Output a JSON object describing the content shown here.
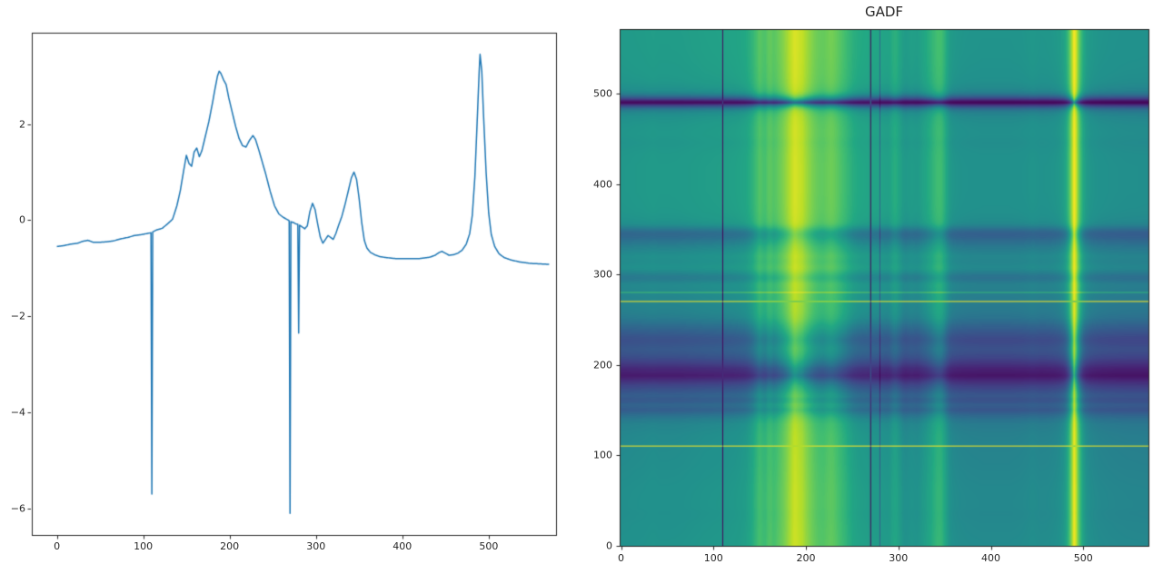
{
  "chart_data": [
    {
      "type": "line",
      "name": "signal-time-series",
      "title": "",
      "line_color": "#1f77b4",
      "line_width": 1.5,
      "grid": false,
      "xlim": [
        -29,
        578
      ],
      "ylim": [
        -6.55,
        3.9
      ],
      "x_tick_values": [
        0,
        100,
        200,
        300,
        400,
        500
      ],
      "x_tick_labels": [
        "0",
        "100",
        "200",
        "300",
        "400",
        "500"
      ],
      "y_tick_values": [
        2,
        0,
        -2,
        -4,
        -6
      ],
      "y_tick_labels": [
        "2",
        "0",
        "−2",
        "−4",
        "−6"
      ],
      "points": [
        [
          0,
          -0.55
        ],
        [
          8,
          -0.53
        ],
        [
          16,
          -0.5
        ],
        [
          24,
          -0.48
        ],
        [
          30,
          -0.44
        ],
        [
          36,
          -0.42
        ],
        [
          42,
          -0.46
        ],
        [
          50,
          -0.46
        ],
        [
          58,
          -0.45
        ],
        [
          66,
          -0.43
        ],
        [
          74,
          -0.39
        ],
        [
          82,
          -0.36
        ],
        [
          90,
          -0.32
        ],
        [
          98,
          -0.3
        ],
        [
          104,
          -0.28
        ],
        [
          109.5,
          -0.26
        ],
        [
          110,
          -5.7
        ],
        [
          110.5,
          -0.25
        ],
        [
          116,
          -0.2
        ],
        [
          122,
          -0.17
        ],
        [
          128,
          -0.08
        ],
        [
          134,
          0.02
        ],
        [
          139,
          0.3
        ],
        [
          143,
          0.62
        ],
        [
          147,
          1.05
        ],
        [
          150,
          1.35
        ],
        [
          153,
          1.18
        ],
        [
          156,
          1.12
        ],
        [
          159,
          1.42
        ],
        [
          162,
          1.5
        ],
        [
          165,
          1.32
        ],
        [
          168,
          1.45
        ],
        [
          172,
          1.75
        ],
        [
          176,
          2.05
        ],
        [
          180,
          2.42
        ],
        [
          183,
          2.72
        ],
        [
          186,
          3.0
        ],
        [
          188,
          3.1
        ],
        [
          190,
          3.05
        ],
        [
          193,
          2.92
        ],
        [
          196,
          2.82
        ],
        [
          199,
          2.55
        ],
        [
          203,
          2.25
        ],
        [
          207,
          1.95
        ],
        [
          211,
          1.7
        ],
        [
          215,
          1.55
        ],
        [
          219,
          1.52
        ],
        [
          223,
          1.66
        ],
        [
          227,
          1.76
        ],
        [
          230,
          1.68
        ],
        [
          234,
          1.45
        ],
        [
          238,
          1.2
        ],
        [
          242,
          0.95
        ],
        [
          247,
          0.6
        ],
        [
          252,
          0.3
        ],
        [
          257,
          0.13
        ],
        [
          262,
          0.06
        ],
        [
          267,
          0.01
        ],
        [
          269.5,
          -0.02
        ],
        [
          270,
          -6.1
        ],
        [
          270.5,
          -0.03
        ],
        [
          274,
          -0.05
        ],
        [
          277,
          -0.08
        ],
        [
          279.5,
          -0.09
        ],
        [
          280,
          -2.35
        ],
        [
          280.5,
          -0.1
        ],
        [
          284,
          -0.14
        ],
        [
          287,
          -0.18
        ],
        [
          290,
          -0.12
        ],
        [
          293,
          0.18
        ],
        [
          296,
          0.35
        ],
        [
          299,
          0.22
        ],
        [
          302,
          -0.08
        ],
        [
          305,
          -0.35
        ],
        [
          308,
          -0.48
        ],
        [
          311,
          -0.4
        ],
        [
          314,
          -0.32
        ],
        [
          317,
          -0.36
        ],
        [
          320,
          -0.4
        ],
        [
          323,
          -0.28
        ],
        [
          326,
          -0.12
        ],
        [
          330,
          0.08
        ],
        [
          334,
          0.35
        ],
        [
          338,
          0.65
        ],
        [
          341,
          0.88
        ],
        [
          344,
          1.0
        ],
        [
          347,
          0.85
        ],
        [
          350,
          0.45
        ],
        [
          353,
          -0.05
        ],
        [
          356,
          -0.42
        ],
        [
          359,
          -0.58
        ],
        [
          363,
          -0.67
        ],
        [
          368,
          -0.72
        ],
        [
          374,
          -0.76
        ],
        [
          382,
          -0.78
        ],
        [
          392,
          -0.8
        ],
        [
          405,
          -0.8
        ],
        [
          420,
          -0.8
        ],
        [
          432,
          -0.77
        ],
        [
          438,
          -0.73
        ],
        [
          443,
          -0.67
        ],
        [
          446,
          -0.65
        ],
        [
          450,
          -0.69
        ],
        [
          454,
          -0.73
        ],
        [
          459,
          -0.72
        ],
        [
          464,
          -0.69
        ],
        [
          469,
          -0.63
        ],
        [
          474,
          -0.5
        ],
        [
          478,
          -0.28
        ],
        [
          481,
          0.1
        ],
        [
          484,
          0.9
        ],
        [
          487,
          2.2
        ],
        [
          489,
          3.1
        ],
        [
          490,
          3.45
        ],
        [
          492,
          3.1
        ],
        [
          494,
          2.2
        ],
        [
          497,
          1.0
        ],
        [
          500,
          0.15
        ],
        [
          503,
          -0.3
        ],
        [
          507,
          -0.55
        ],
        [
          512,
          -0.7
        ],
        [
          518,
          -0.78
        ],
        [
          526,
          -0.83
        ],
        [
          536,
          -0.87
        ],
        [
          548,
          -0.9
        ],
        [
          560,
          -0.91
        ],
        [
          570,
          -0.92
        ]
      ]
    },
    {
      "type": "heatmap",
      "name": "gadf-field",
      "title": "GADF",
      "transform": "gramian_angular_difference_field_of_signal",
      "colormap": "viridis",
      "n_samples": 571,
      "extent": [
        -0.5,
        570.5,
        -0.5,
        570.5
      ],
      "value_range": [
        -1,
        1
      ],
      "x_tick_values": [
        0,
        100,
        200,
        300,
        400,
        500
      ],
      "x_tick_labels": [
        "0",
        "100",
        "200",
        "300",
        "400",
        "500"
      ],
      "y_tick_values": [
        0,
        100,
        200,
        300,
        400,
        500
      ],
      "y_tick_labels": [
        "0",
        "100",
        "200",
        "300",
        "400",
        "500"
      ],
      "viridis_anchors": [
        [
          68,
          1,
          84
        ],
        [
          72,
          36,
          117
        ],
        [
          65,
          68,
          135
        ],
        [
          53,
          95,
          141
        ],
        [
          42,
          120,
          142
        ],
        [
          33,
          145,
          140
        ],
        [
          34,
          168,
          132
        ],
        [
          68,
          191,
          112
        ],
        [
          122,
          209,
          81
        ],
        [
          189,
          223,
          38
        ],
        [
          253,
          231,
          37
        ]
      ]
    }
  ]
}
